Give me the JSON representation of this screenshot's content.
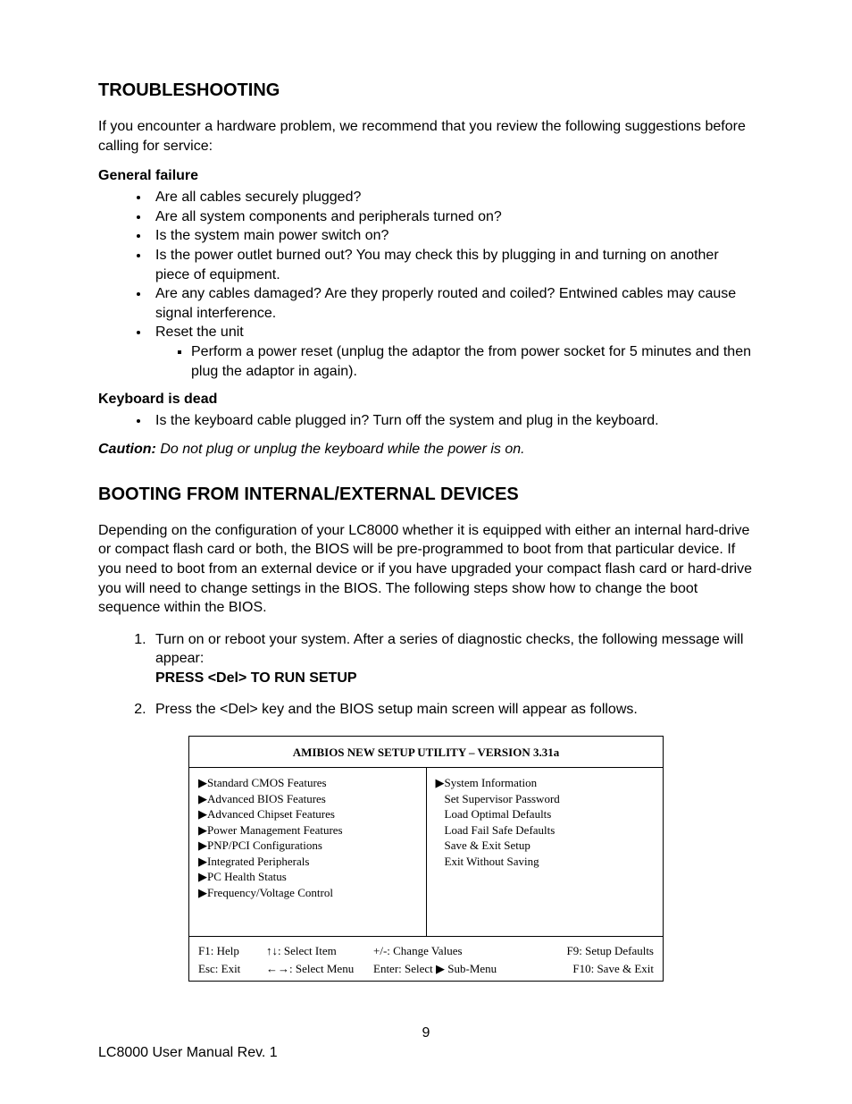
{
  "section1_title": "TROUBLESHOOTING",
  "intro1": "If you encounter a hardware problem, we recommend that you review the following suggestions before calling for service:",
  "gf_head": "General failure",
  "gf": [
    "Are all cables securely plugged?",
    "Are all system components and peripherals turned on?",
    "Is the system main power switch on?",
    "Is the power outlet burned out? You may check this by plugging in and turning on another piece of equipment.",
    "Are any cables damaged? Are they properly routed and coiled? Entwined cables may cause signal interference.",
    "Reset the unit"
  ],
  "gf_sub": "Perform a power reset (unplug the adaptor the from power socket for 5 minutes and then plug the adaptor in again).",
  "kb_head": "Keyboard is dead",
  "kb_item": "Is the keyboard cable plugged in? Turn off the system and plug in the keyboard.",
  "caution_label": "Caution:",
  "caution_text": " Do not plug or unplug the keyboard while the power is on.",
  "section2_title": "BOOTING FROM INTERNAL/EXTERNAL DEVICES",
  "intro2": "Depending on the configuration of your LC8000 whether it is equipped with either an internal hard-drive or compact flash card or both, the BIOS will be pre-programmed to boot from that particular device. If you need to boot from an external device or if you have upgraded your compact flash card or hard-drive you will need to change settings in the BIOS. The following steps show how to change the boot sequence within the BIOS.",
  "step1a": "Turn on or reboot your system. After a series of diagnostic checks, the following message will appear:",
  "step1b": "PRESS <Del> TO RUN SETUP",
  "step2": "Press the <Del> key and the BIOS setup main screen will appear as follows.",
  "bios": {
    "title": "AMIBIOS NEW SETUP UTILITY – VERSION 3.31a",
    "left": [
      {
        "tri": true,
        "label": "Standard CMOS Features"
      },
      {
        "tri": true,
        "label": "Advanced BIOS Features"
      },
      {
        "tri": true,
        "label": "Advanced Chipset Features"
      },
      {
        "tri": true,
        "label": "Power Management Features"
      },
      {
        "tri": true,
        "label": "PNP/PCI Configurations"
      },
      {
        "tri": true,
        "label": "Integrated Peripherals"
      },
      {
        "tri": true,
        "label": "PC Health Status"
      },
      {
        "tri": true,
        "label": "Frequency/Voltage Control"
      }
    ],
    "right": [
      {
        "tri": true,
        "label": "System Information"
      },
      {
        "tri": false,
        "label": "Set Supervisor Password"
      },
      {
        "tri": false,
        "label": "Load Optimal Defaults"
      },
      {
        "tri": false,
        "label": "Load Fail Safe Defaults"
      },
      {
        "tri": false,
        "label": "Save & Exit Setup"
      },
      {
        "tri": false,
        "label": "Exit Without Saving"
      }
    ],
    "footer": {
      "r1": {
        "a": "F1: Help",
        "b": "↑↓: Select Item",
        "c": "+/-: Change Values",
        "d": "F9: Setup Defaults"
      },
      "r2": {
        "a": "Esc: Exit",
        "b": "←→: Select Menu",
        "c": "Enter: Select ▶ Sub-Menu",
        "d": "F10: Save & Exit"
      }
    }
  },
  "page_number": "9",
  "footer_left": "LC8000 User Manual Rev. 1"
}
